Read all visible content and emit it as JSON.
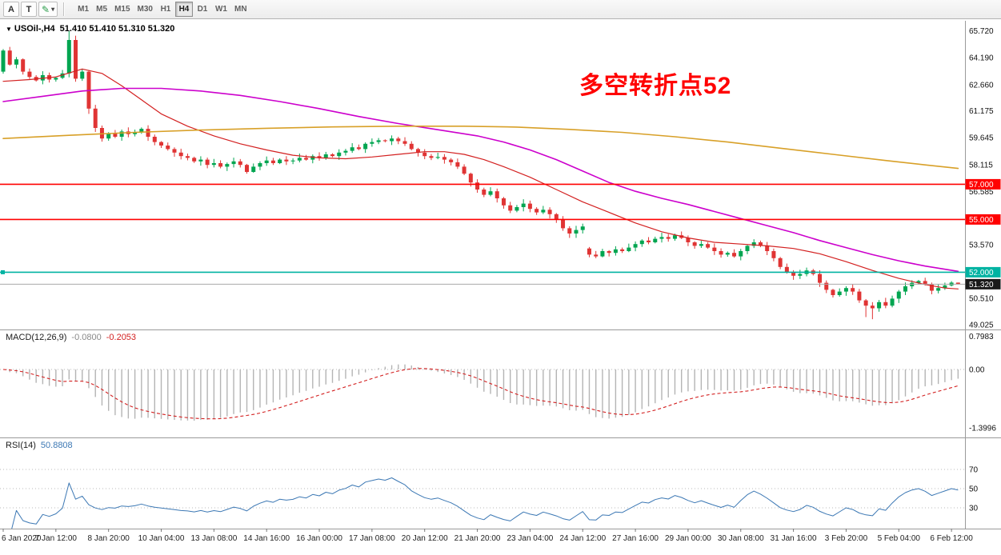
{
  "toolbar": {
    "tools": [
      {
        "id": "arrow-tool",
        "label": "A"
      },
      {
        "id": "text-tool",
        "label": "T"
      }
    ],
    "timeframes": [
      "M1",
      "M5",
      "M15",
      "M30",
      "H1",
      "H4",
      "D1",
      "W1",
      "MN"
    ],
    "active_timeframe": "H4"
  },
  "colors": {
    "bull": "#00a550",
    "bear": "#e03434",
    "hline_red": "#ff0000",
    "hline_teal": "#00b3a2",
    "ma_fast": "#d32020",
    "ma_mid": "#cc00cc",
    "ma_slow": "#d8a028",
    "macd_hist": "#b4b4b4",
    "macd_signal": "#d32020",
    "macd_value_main": "#8a8a8a",
    "rsi_line": "#3c78b4",
    "annotation": "#ff0000",
    "current_price_tag_bg": "#1a1a1a",
    "current_price_line": "#aaaaaa"
  },
  "chart_data": {
    "type": "candlestick",
    "symbol_label": "USOil-,H4",
    "ohlc_display": "51.410 51.410 51.310 51.320",
    "annotation": {
      "text": "多空转折点52",
      "color": "#ff0000"
    },
    "price_axis_labels": [
      "65.720",
      "64.190",
      "62.660",
      "61.175",
      "59.645",
      "58.115",
      "56.585",
      "55.055",
      "53.570",
      "52.040",
      "50.510",
      "49.025"
    ],
    "time_labels": [
      "6 Jan 2020",
      "7 Jan 12:00",
      "8 Jan 20:00",
      "10 Jan 04:00",
      "13 Jan 08:00",
      "14 Jan 16:00",
      "16 Jan 00:00",
      "17 Jan 08:00",
      "20 Jan 12:00",
      "21 Jan 20:00",
      "23 Jan 04:00",
      "24 Jan 12:00",
      "27 Jan 16:00",
      "29 Jan 00:00",
      "30 Jan 08:00",
      "31 Jan 16:00",
      "3 Feb 20:00",
      "5 Feb 04:00",
      "6 Feb 12:00"
    ],
    "label_every": 8,
    "open_first": 63.4,
    "closes": [
      64.6,
      63.8,
      64.1,
      63.4,
      63.1,
      62.9,
      63.2,
      62.95,
      63.05,
      63.3,
      65.2,
      63.0,
      63.4,
      61.3,
      60.2,
      59.6,
      59.9,
      59.7,
      60.0,
      59.85,
      59.95,
      60.15,
      59.7,
      59.4,
      59.2,
      59.0,
      58.8,
      58.6,
      58.5,
      58.3,
      58.4,
      58.1,
      58.2,
      58.0,
      58.15,
      58.3,
      58.1,
      57.7,
      58.0,
      58.2,
      58.35,
      58.2,
      58.4,
      58.3,
      58.35,
      58.5,
      58.4,
      58.6,
      58.5,
      58.7,
      58.6,
      58.8,
      58.9,
      59.1,
      59.0,
      59.3,
      59.4,
      59.5,
      59.45,
      59.6,
      59.45,
      59.3,
      59.0,
      58.8,
      58.6,
      58.5,
      58.55,
      58.4,
      58.25,
      58.0,
      57.6,
      57.1,
      56.7,
      56.4,
      56.6,
      56.2,
      55.8,
      55.5,
      55.7,
      55.9,
      55.6,
      55.4,
      55.55,
      55.3,
      55.0,
      54.5,
      54.2,
      54.4,
      54.6,
      53.0,
      52.9,
      53.2,
      53.1,
      53.3,
      53.2,
      53.4,
      53.6,
      53.8,
      53.7,
      53.9,
      54.0,
      53.9,
      54.1,
      53.95,
      53.7,
      53.5,
      53.6,
      53.4,
      53.2,
      53.0,
      53.1,
      52.9,
      53.2,
      53.5,
      53.7,
      53.5,
      53.2,
      52.8,
      52.3,
      52.0,
      51.8,
      51.9,
      52.1,
      51.9,
      51.4,
      51.0,
      50.7,
      50.9,
      51.1,
      50.9,
      50.4,
      50.1,
      49.95,
      50.3,
      50.1,
      50.5,
      50.9,
      51.2,
      51.4,
      51.5,
      51.3,
      50.95,
      51.1,
      51.25,
      51.41,
      51.32
    ],
    "open_overrides": {
      "89": 53.35
    },
    "wick_overrides": {
      "10": {
        "h": 65.72
      },
      "13": {
        "l": 61.0
      },
      "86": {
        "l": 53.95
      },
      "131": {
        "l": 49.45
      },
      "132": {
        "l": 49.33
      },
      "145": {
        "h": 51.41,
        "l": 51.31
      }
    },
    "hlines": [
      {
        "value": 57.0,
        "label": "57.000",
        "color": "#ff0000"
      },
      {
        "value": 55.0,
        "label": "55.000",
        "color": "#ff0000"
      },
      {
        "value": 52.0,
        "label": "52.000",
        "color": "#00b3a2"
      }
    ],
    "current_price": {
      "value": 51.32,
      "label": "51.320"
    },
    "ma_lines": [
      {
        "name": "ma-fast-red",
        "color": "#d32020",
        "width": 1.2,
        "points": [
          [
            0,
            62.85
          ],
          [
            4,
            62.95
          ],
          [
            8,
            63.1
          ],
          [
            12,
            63.55
          ],
          [
            15,
            63.3
          ],
          [
            18,
            62.6
          ],
          [
            21,
            61.8
          ],
          [
            24,
            61.0
          ],
          [
            28,
            60.3
          ],
          [
            32,
            59.75
          ],
          [
            36,
            59.3
          ],
          [
            40,
            58.95
          ],
          [
            44,
            58.65
          ],
          [
            48,
            58.5
          ],
          [
            52,
            58.45
          ],
          [
            56,
            58.55
          ],
          [
            60,
            58.7
          ],
          [
            64,
            58.85
          ],
          [
            67,
            58.85
          ],
          [
            70,
            58.7
          ],
          [
            73,
            58.4
          ],
          [
            76,
            58.0
          ],
          [
            80,
            57.4
          ],
          [
            84,
            56.7
          ],
          [
            88,
            56.0
          ],
          [
            92,
            55.4
          ],
          [
            96,
            54.8
          ],
          [
            100,
            54.3
          ],
          [
            104,
            53.95
          ],
          [
            108,
            53.7
          ],
          [
            112,
            53.6
          ],
          [
            116,
            53.5
          ],
          [
            120,
            53.35
          ],
          [
            124,
            53.05
          ],
          [
            128,
            52.6
          ],
          [
            132,
            52.1
          ],
          [
            136,
            51.65
          ],
          [
            140,
            51.3
          ],
          [
            143,
            51.1
          ],
          [
            145,
            51.05
          ]
        ]
      },
      {
        "name": "ma-mid-magenta",
        "color": "#cc00cc",
        "width": 1.6,
        "points": [
          [
            0,
            61.7
          ],
          [
            6,
            62.0
          ],
          [
            12,
            62.3
          ],
          [
            18,
            62.45
          ],
          [
            24,
            62.45
          ],
          [
            30,
            62.3
          ],
          [
            36,
            62.05
          ],
          [
            42,
            61.7
          ],
          [
            48,
            61.3
          ],
          [
            54,
            60.85
          ],
          [
            60,
            60.45
          ],
          [
            66,
            60.1
          ],
          [
            72,
            59.75
          ],
          [
            76,
            59.4
          ],
          [
            80,
            58.95
          ],
          [
            84,
            58.4
          ],
          [
            88,
            57.75
          ],
          [
            92,
            57.1
          ],
          [
            96,
            56.6
          ],
          [
            100,
            56.2
          ],
          [
            104,
            55.85
          ],
          [
            108,
            55.45
          ],
          [
            112,
            55.05
          ],
          [
            116,
            54.65
          ],
          [
            120,
            54.25
          ],
          [
            124,
            53.8
          ],
          [
            128,
            53.4
          ],
          [
            132,
            53.0
          ],
          [
            136,
            52.65
          ],
          [
            140,
            52.35
          ],
          [
            145,
            52.05
          ]
        ]
      },
      {
        "name": "ma-slow-orange",
        "color": "#d8a028",
        "width": 1.6,
        "points": [
          [
            0,
            59.6
          ],
          [
            10,
            59.78
          ],
          [
            20,
            59.95
          ],
          [
            30,
            60.08
          ],
          [
            40,
            60.18
          ],
          [
            50,
            60.26
          ],
          [
            60,
            60.3
          ],
          [
            70,
            60.3
          ],
          [
            78,
            60.25
          ],
          [
            86,
            60.12
          ],
          [
            94,
            59.95
          ],
          [
            102,
            59.7
          ],
          [
            110,
            59.4
          ],
          [
            118,
            59.05
          ],
          [
            126,
            58.7
          ],
          [
            134,
            58.35
          ],
          [
            140,
            58.1
          ],
          [
            145,
            57.9
          ]
        ]
      }
    ],
    "macd": {
      "label": "MACD(12,26,9)",
      "params": [
        12,
        26,
        9
      ],
      "values": [
        "-0.0800",
        "-0.2053"
      ],
      "axis_labels": [
        "0.7983",
        "0.00",
        "-1.3996"
      ]
    },
    "rsi": {
      "label": "RSI(14)",
      "period": 14,
      "value": "50.8808",
      "levels": [
        70,
        50,
        30
      ]
    }
  }
}
